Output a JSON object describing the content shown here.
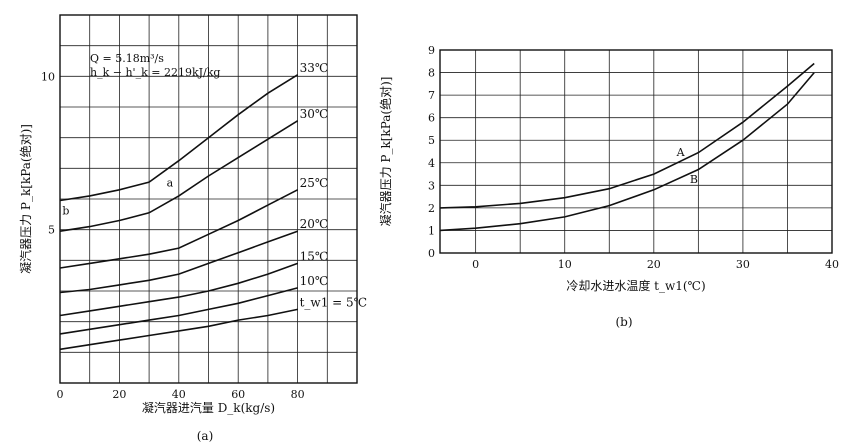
{
  "chart_data": [
    {
      "type": "line",
      "panel_label": "(a)",
      "xlabel": "凝汽器进汽量 D_k(kg/s)",
      "ylabel": "凝汽器压力 P_k[kPa(绝对)]",
      "xlim": [
        0,
        100
      ],
      "ylim": [
        0,
        12
      ],
      "x_ticks": [
        0,
        20,
        40,
        60,
        80
      ],
      "y_ticks": [
        5,
        10
      ],
      "grid": true,
      "annotation_lines": [
        "Q = 5.18m³/s",
        "h_k − h'_k = 2219kJ/kg"
      ],
      "point_labels": [
        {
          "text": "a",
          "x": 37,
          "y": 6.4
        },
        {
          "text": "b",
          "x": 2,
          "y": 5.5
        }
      ],
      "series": [
        {
          "name": "33℃",
          "x": [
            0,
            10,
            20,
            30,
            40,
            50,
            60,
            70,
            80
          ],
          "y": [
            5.95,
            6.1,
            6.3,
            6.55,
            7.25,
            8.0,
            8.75,
            9.45,
            10.05
          ]
        },
        {
          "name": "30℃",
          "x": [
            0,
            10,
            20,
            30,
            40,
            50,
            60,
            70,
            80
          ],
          "y": [
            4.95,
            5.1,
            5.3,
            5.55,
            6.1,
            6.75,
            7.35,
            7.95,
            8.55
          ]
        },
        {
          "name": "25℃",
          "x": [
            0,
            10,
            20,
            30,
            40,
            50,
            60,
            70,
            80
          ],
          "y": [
            3.75,
            3.9,
            4.05,
            4.2,
            4.4,
            4.85,
            5.3,
            5.8,
            6.3
          ]
        },
        {
          "name": "20℃",
          "x": [
            0,
            10,
            20,
            30,
            40,
            50,
            60,
            70,
            80
          ],
          "y": [
            2.95,
            3.05,
            3.2,
            3.35,
            3.55,
            3.9,
            4.25,
            4.6,
            4.95
          ]
        },
        {
          "name": "15℃",
          "x": [
            0,
            10,
            20,
            30,
            40,
            50,
            60,
            70,
            80
          ],
          "y": [
            2.2,
            2.35,
            2.5,
            2.65,
            2.8,
            3.0,
            3.25,
            3.55,
            3.9
          ]
        },
        {
          "name": "10℃",
          "x": [
            0,
            10,
            20,
            30,
            40,
            50,
            60,
            70,
            80
          ],
          "y": [
            1.6,
            1.75,
            1.9,
            2.05,
            2.2,
            2.4,
            2.6,
            2.85,
            3.1
          ]
        },
        {
          "name": "t_w1 = 5℃",
          "x": [
            0,
            10,
            20,
            30,
            40,
            50,
            60,
            70,
            80
          ],
          "y": [
            1.1,
            1.25,
            1.4,
            1.55,
            1.7,
            1.85,
            2.05,
            2.2,
            2.4
          ]
        }
      ]
    },
    {
      "type": "line",
      "panel_label": "(b)",
      "xlabel": "冷却水进水温度 t_w1(℃)",
      "ylabel": "凝汽器压力 P_k[kPa(绝对)]",
      "xlim": [
        -4,
        40
      ],
      "ylim": [
        0,
        9
      ],
      "x_ticks": [
        0,
        10,
        20,
        30,
        40
      ],
      "y_ticks": [
        0,
        1,
        2,
        3,
        4,
        5,
        6,
        7,
        8,
        9
      ],
      "grid": true,
      "point_labels": [
        {
          "text": "A",
          "x": 23,
          "y": 4.3
        },
        {
          "text": "B",
          "x": 24.5,
          "y": 3.1
        }
      ],
      "series": [
        {
          "name": "A",
          "x": [
            -4,
            0,
            5,
            10,
            15,
            20,
            25,
            30,
            35,
            38
          ],
          "y": [
            2.0,
            2.05,
            2.2,
            2.45,
            2.85,
            3.5,
            4.45,
            5.8,
            7.4,
            8.4
          ]
        },
        {
          "name": "B",
          "x": [
            -4,
            0,
            5,
            10,
            15,
            20,
            25,
            30,
            35,
            38
          ],
          "y": [
            1.0,
            1.1,
            1.3,
            1.6,
            2.1,
            2.8,
            3.7,
            5.0,
            6.6,
            8.0
          ]
        }
      ]
    }
  ]
}
